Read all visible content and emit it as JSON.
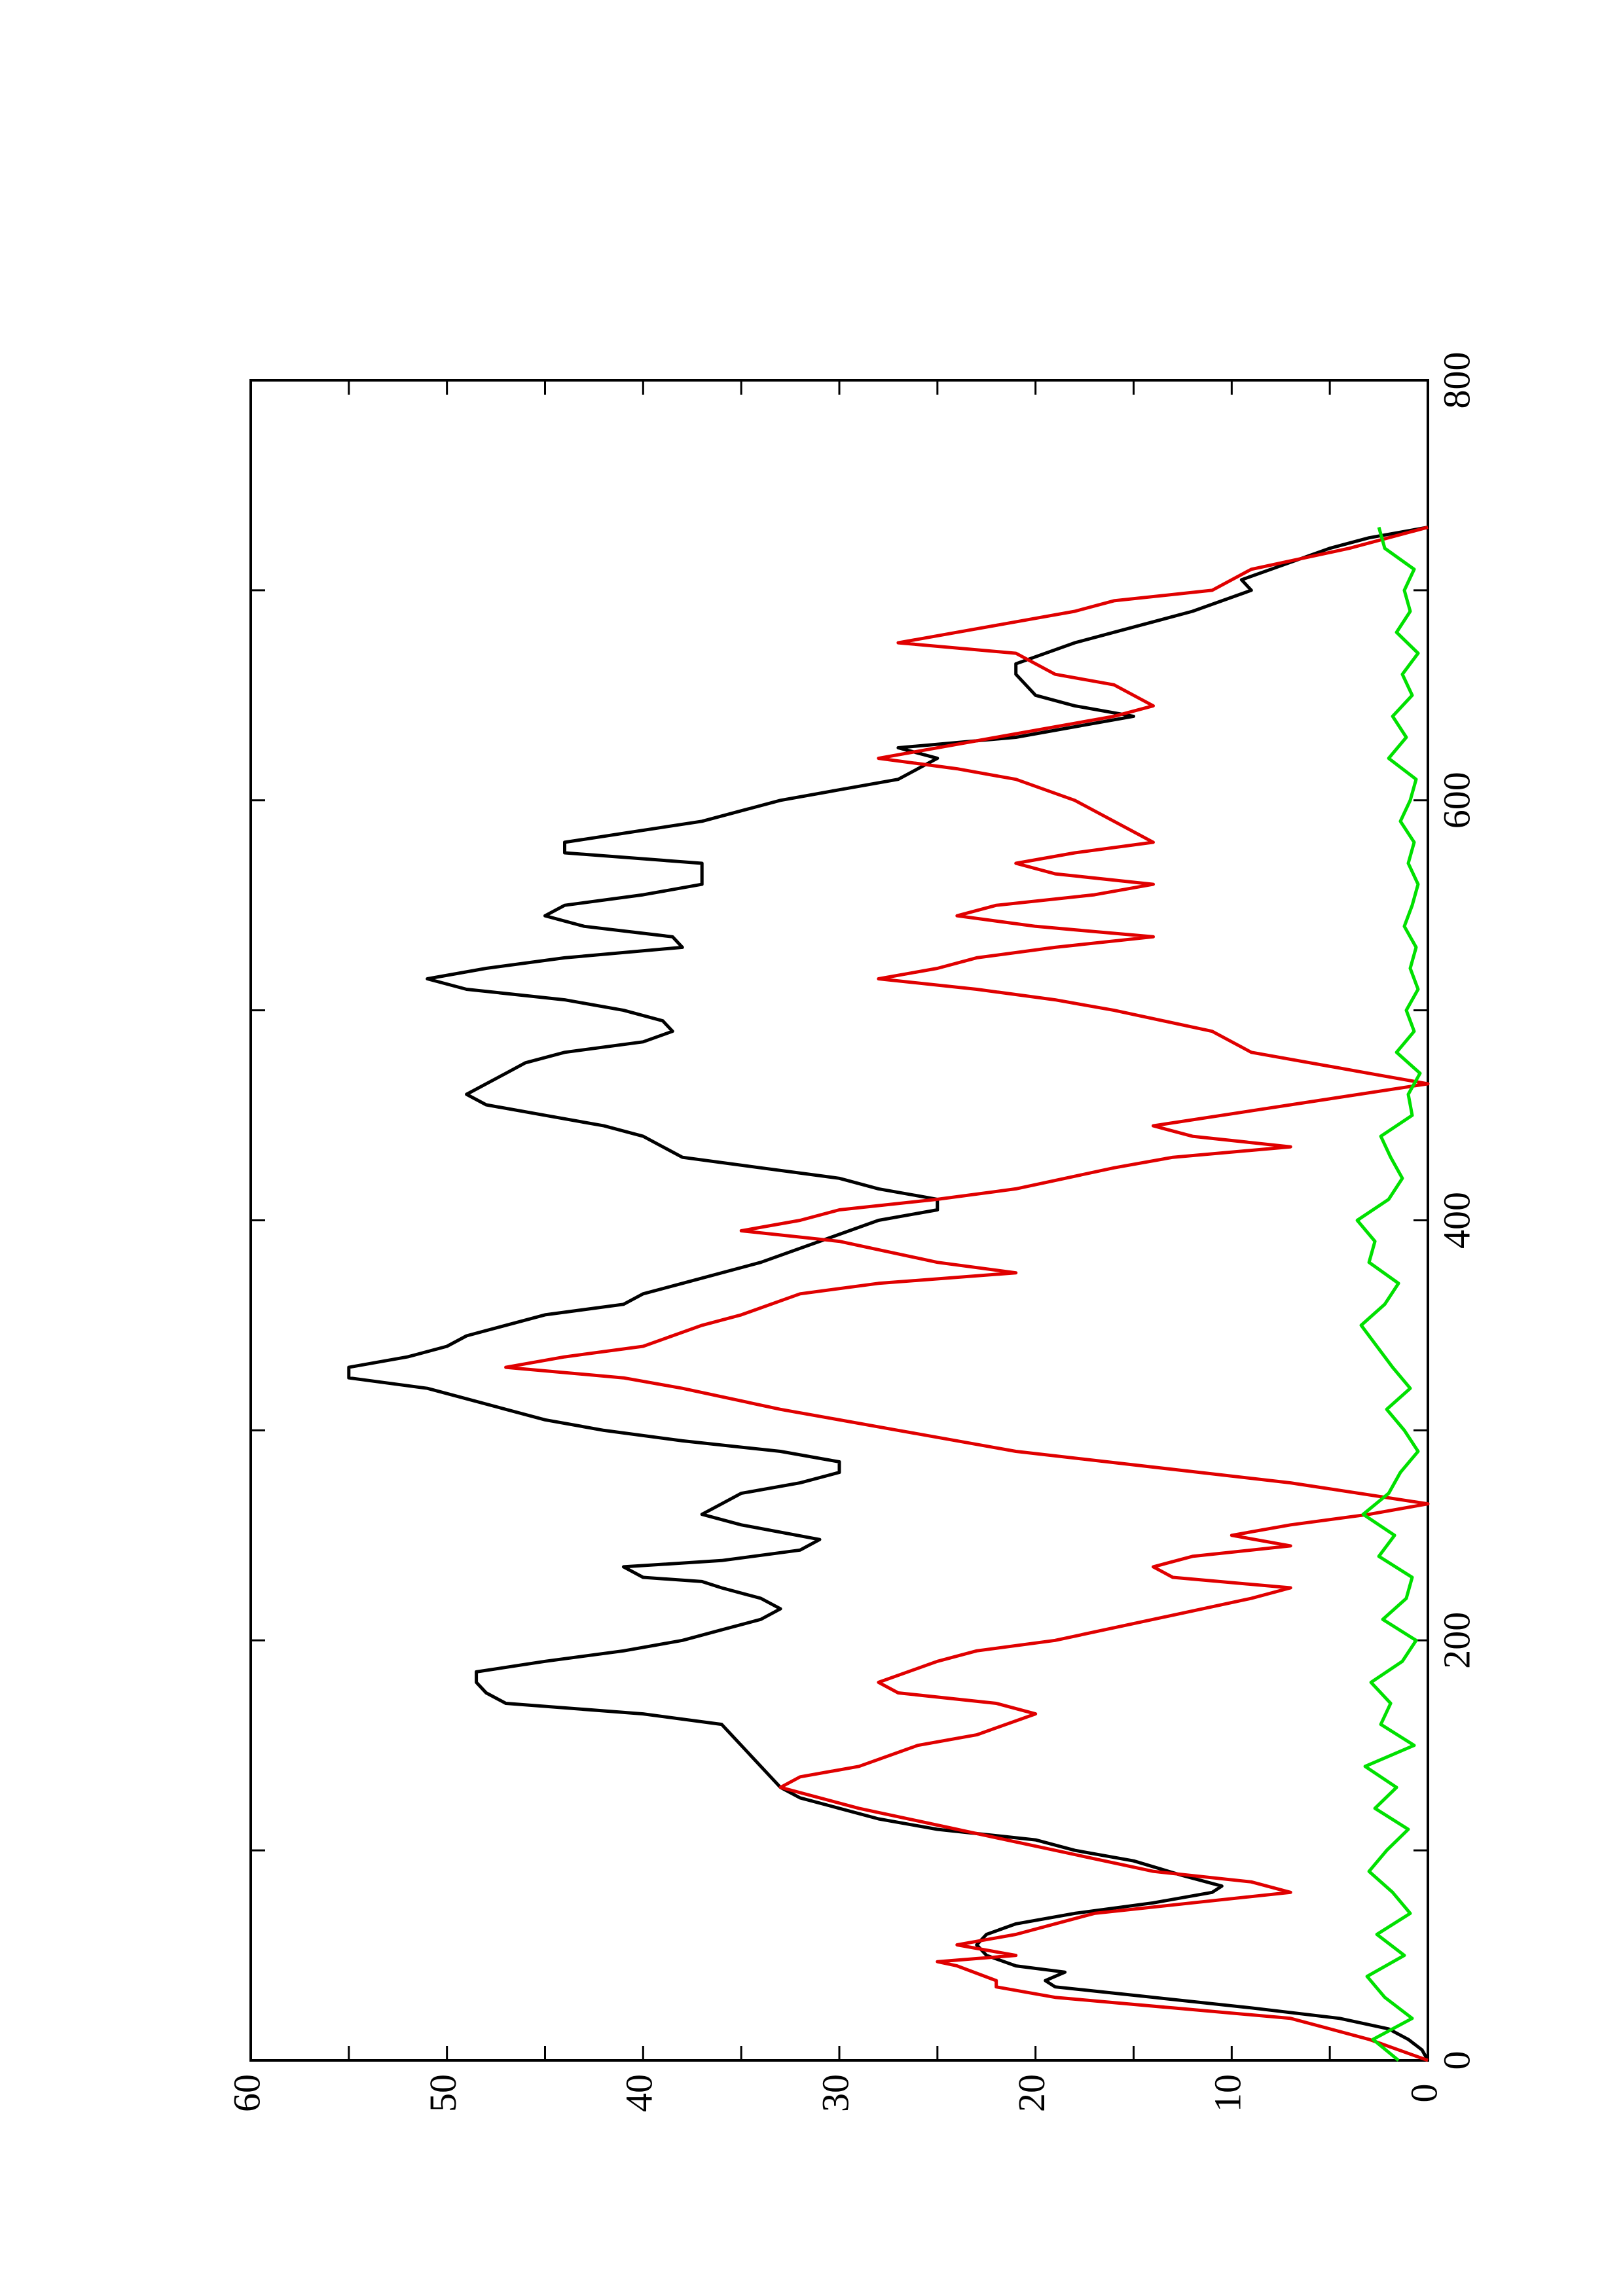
{
  "chart_data": {
    "type": "line",
    "xlim": [
      0,
      800
    ],
    "xticks": [
      0,
      200,
      400,
      600,
      800
    ],
    "xminorticks": [
      100,
      300,
      500,
      700
    ],
    "ylim": [
      0,
      60
    ],
    "yticks": [
      0,
      10,
      20,
      30,
      40,
      50,
      60
    ],
    "yminorticks": [
      5,
      15,
      25,
      35,
      45,
      55
    ],
    "rotation": -90,
    "series": [
      {
        "color": "#000000",
        "x": [
          0,
          5,
          10,
          15,
          20,
          25,
          30,
          35,
          38,
          42,
          45,
          50,
          55,
          60,
          65,
          70,
          75,
          80,
          83,
          88,
          95,
          100,
          105,
          110,
          115,
          120,
          125,
          130,
          140,
          150,
          160,
          165,
          170,
          175,
          180,
          185,
          190,
          195,
          200,
          205,
          210,
          215,
          220,
          225,
          228,
          230,
          235,
          238,
          243,
          248,
          255,
          260,
          265,
          270,
          275,
          280,
          285,
          290,
          295,
          300,
          305,
          310,
          315,
          320,
          325,
          330,
          335,
          340,
          345,
          350,
          355,
          360,
          365,
          370,
          380,
          390,
          400,
          405,
          410,
          415,
          420,
          425,
          430,
          440,
          445,
          450,
          455,
          460,
          470,
          475,
          480,
          485,
          490,
          495,
          500,
          505,
          510,
          515,
          520,
          525,
          530,
          535,
          540,
          545,
          550,
          555,
          560,
          570,
          575,
          580,
          590,
          600,
          605,
          610,
          615,
          620,
          625,
          630,
          640,
          645,
          650,
          660,
          665,
          675,
          680,
          690,
          700,
          705,
          710,
          720,
          725,
          730
        ],
        "values": [
          0,
          0.3,
          1,
          2,
          4.5,
          9,
          14,
          19,
          19.5,
          18.5,
          21,
          22.5,
          23,
          22.5,
          21,
          18,
          14,
          11,
          10.5,
          12.5,
          15,
          18,
          20,
          25,
          28,
          30,
          32,
          33,
          34,
          35,
          36,
          40,
          47,
          48,
          48.5,
          48.5,
          45,
          41,
          38,
          36,
          34,
          33,
          34,
          36,
          37,
          40,
          41,
          36,
          32,
          31,
          35,
          37,
          36,
          35,
          32,
          30,
          30,
          33,
          38,
          42,
          45,
          47,
          49,
          51,
          55,
          55,
          52,
          50,
          49,
          47,
          45,
          41,
          40,
          38,
          34,
          31,
          28,
          25,
          25,
          28,
          30,
          34,
          38,
          40,
          42,
          45,
          48,
          49,
          47,
          46,
          44,
          40,
          38.5,
          39,
          41,
          44,
          49,
          51,
          48,
          44,
          38,
          38.5,
          43,
          45,
          44,
          40,
          37,
          37,
          44,
          44,
          37,
          33,
          30,
          27,
          26,
          25,
          27,
          21,
          15,
          18,
          20,
          21,
          21,
          18,
          16,
          12,
          9,
          9.5,
          8,
          5,
          3,
          0
        ]
      },
      {
        "color": "#e00000",
        "x": [
          0,
          10,
          20,
          25,
          30,
          35,
          38,
          45,
          47,
          50,
          55,
          60,
          65,
          70,
          75,
          80,
          85,
          90,
          100,
          110,
          120,
          130,
          135,
          140,
          150,
          155,
          165,
          170,
          175,
          180,
          190,
          195,
          200,
          210,
          220,
          225,
          230,
          235,
          240,
          245,
          250,
          255,
          260,
          265,
          275,
          290,
          300,
          310,
          320,
          325,
          330,
          335,
          340,
          350,
          355,
          365,
          370,
          375,
          380,
          390,
          395,
          400,
          405,
          410,
          415,
          425,
          430,
          435,
          440,
          445,
          455,
          465,
          470,
          480,
          490,
          500,
          505,
          510,
          515,
          520,
          525,
          530,
          535,
          540,
          545,
          550,
          555,
          560,
          565,
          570,
          575,
          580,
          590,
          600,
          610,
          615,
          620,
          630,
          640,
          645,
          655,
          660,
          670,
          675,
          680,
          690,
          695,
          700,
          710,
          720,
          730
        ],
        "values": [
          0,
          3,
          7,
          13,
          19,
          22,
          22,
          24,
          25,
          21,
          24,
          21,
          19,
          17,
          12,
          7,
          9,
          14,
          19,
          24,
          29,
          33,
          32,
          29,
          26,
          23,
          20,
          22,
          27,
          28,
          25,
          23,
          19,
          14,
          9,
          7,
          13,
          14,
          12,
          7,
          10,
          7,
          3,
          0,
          7,
          21,
          27,
          33,
          38,
          41,
          47,
          44,
          40,
          37,
          35,
          32,
          28,
          21,
          25,
          30,
          35,
          32,
          30,
          25,
          21,
          16,
          13,
          7,
          12,
          14,
          7,
          0,
          3,
          9,
          11,
          16,
          19,
          23,
          28,
          25,
          23,
          19,
          14,
          20,
          24,
          22,
          17,
          14,
          19,
          21,
          18,
          14,
          16,
          18,
          21,
          24,
          28,
          22,
          16,
          14,
          16,
          19,
          21,
          27,
          24,
          18,
          16,
          11,
          9,
          4,
          0
        ]
      },
      {
        "color": "#00e000",
        "x": [
          0,
          10,
          20,
          30,
          40,
          50,
          60,
          70,
          80,
          90,
          100,
          110,
          120,
          130,
          140,
          150,
          160,
          170,
          180,
          190,
          200,
          210,
          220,
          230,
          240,
          250,
          260,
          270,
          280,
          290,
          300,
          310,
          320,
          330,
          340,
          350,
          360,
          370,
          380,
          390,
          400,
          410,
          420,
          430,
          440,
          450,
          460,
          470,
          480,
          490,
          500,
          510,
          520,
          530,
          540,
          550,
          560,
          570,
          580,
          590,
          600,
          610,
          620,
          630,
          640,
          650,
          660,
          670,
          680,
          690,
          700,
          710,
          720,
          730
        ],
        "values": [
          1.5,
          2.8,
          0.8,
          2.2,
          3.1,
          1.2,
          2.6,
          0.9,
          1.8,
          3.0,
          2.1,
          1.0,
          2.7,
          1.6,
          3.2,
          0.7,
          2.4,
          1.9,
          2.9,
          1.3,
          0.6,
          2.3,
          1.1,
          0.8,
          2.5,
          1.7,
          3.3,
          2.0,
          1.4,
          0.5,
          1.2,
          2.1,
          0.9,
          1.8,
          2.6,
          3.4,
          2.2,
          1.5,
          3.0,
          2.7,
          3.6,
          2.0,
          1.3,
          1.9,
          2.4,
          0.8,
          1.0,
          0.4,
          1.6,
          0.7,
          1.1,
          0.5,
          0.9,
          0.6,
          1.2,
          0.8,
          0.5,
          1.0,
          0.7,
          1.4,
          0.9,
          0.6,
          2.0,
          1.1,
          1.8,
          0.8,
          1.3,
          0.5,
          1.6,
          0.9,
          1.2,
          0.7,
          2.2,
          2.5
        ]
      }
    ]
  }
}
